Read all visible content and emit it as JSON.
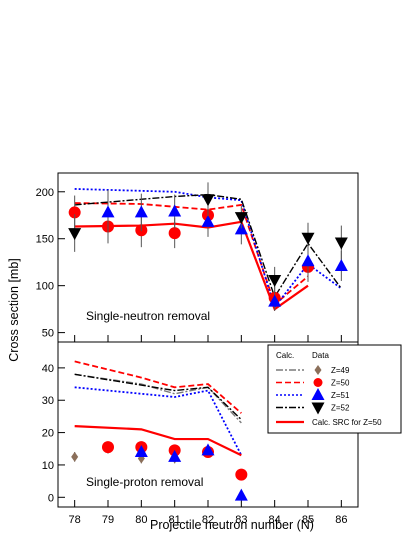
{
  "figure": {
    "xlabel": "Projectile neutron number (N)",
    "ylabel": "Cross section [mb]"
  },
  "legend": {
    "col_calc": "Calc.",
    "col_data": "Data",
    "entries": [
      "Z=49",
      "Z=50",
      "Z=51",
      "Z=52"
    ],
    "src_label": "Calc. SRC for Z=50"
  },
  "colors": {
    "Z49": "#8b6f5a",
    "Z49_calc": "#7a7a7a",
    "Z50": "#ff0000",
    "Z51": "#0000ff",
    "Z52": "#000000",
    "SRC": "#ff0000"
  },
  "chart_data": [
    {
      "type": "line",
      "annotation": "Single-neutron removal",
      "x_ticks": [
        78,
        79,
        80,
        81,
        82,
        83,
        84,
        85,
        86
      ],
      "ylim": [
        40,
        220
      ],
      "y_ticks": [
        50,
        100,
        150,
        200
      ],
      "xlim": [
        77.5,
        86.5
      ],
      "calc": [
        {
          "name": "Z=50",
          "style": "dashed",
          "x": [
            78,
            80,
            81,
            82,
            83,
            84,
            85
          ],
          "y": [
            188,
            187,
            184,
            181,
            186,
            80,
            110
          ]
        },
        {
          "name": "Z=51",
          "style": "dotted",
          "x": [
            78,
            81,
            82,
            83,
            84,
            85,
            86
          ],
          "y": [
            203,
            200,
            194,
            191,
            77,
            123,
            97
          ]
        },
        {
          "name": "Z=52",
          "style": "dashdot",
          "x": [
            78,
            81,
            82,
            83,
            84,
            85,
            86
          ],
          "y": [
            186,
            195,
            197,
            192,
            88,
            145,
            97
          ]
        },
        {
          "name": "Calc. SRC for Z=50",
          "style": "solid",
          "x": [
            78,
            80,
            81,
            82,
            83,
            84,
            85
          ],
          "y": [
            163,
            164,
            166,
            162,
            168,
            75,
            100
          ]
        }
      ],
      "data": [
        {
          "name": "Z=50",
          "marker": "circle",
          "x": [
            78,
            79,
            80,
            81,
            82,
            84,
            85
          ],
          "y": [
            178,
            163,
            159,
            156,
            175,
            87,
            120
          ],
          "err": [
            18,
            18,
            18,
            16,
            18,
            12,
            16
          ]
        },
        {
          "name": "Z=51",
          "marker": "triangle-up",
          "x": [
            79,
            80,
            81,
            82,
            83,
            84,
            85,
            86
          ],
          "y": [
            178,
            178,
            179,
            168,
            160,
            83,
            126,
            121
          ],
          "err": [
            24,
            20,
            18,
            16,
            16,
            10,
            14,
            16
          ]
        },
        {
          "name": "Z=52",
          "marker": "triangle-down",
          "x": [
            78,
            82,
            83,
            84,
            85,
            86
          ],
          "y": [
            156,
            192,
            173,
            106,
            151,
            146
          ],
          "err": [
            20,
            18,
            12,
            14,
            16,
            18
          ]
        }
      ]
    },
    {
      "type": "line",
      "annotation": "Single-proton removal",
      "x_ticks": [
        78,
        79,
        80,
        81,
        82,
        83,
        84,
        85,
        86
      ],
      "ylim": [
        -3,
        48
      ],
      "y_ticks": [
        0,
        10,
        20,
        30,
        40
      ],
      "xlim": [
        77.5,
        86.5
      ],
      "calc": [
        {
          "name": "Z=49",
          "style": "dashdot",
          "x": [
            78,
            80,
            81,
            82,
            83
          ],
          "y": [
            38,
            35,
            32,
            34,
            23
          ]
        },
        {
          "name": "Z=50",
          "style": "dashed",
          "x": [
            78,
            80,
            81,
            82,
            83
          ],
          "y": [
            42,
            37,
            34,
            35,
            26
          ]
        },
        {
          "name": "Z=51",
          "style": "dotted",
          "x": [
            78,
            80,
            81,
            82,
            83
          ],
          "y": [
            34,
            32,
            31,
            33,
            13
          ]
        },
        {
          "name": "Z=52",
          "style": "dashdot-black",
          "x": [
            78,
            81,
            82,
            83
          ],
          "y": [
            38,
            33,
            34,
            24
          ]
        },
        {
          "name": "Calc. SRC for Z=50",
          "style": "solid",
          "x": [
            78,
            80,
            81,
            82,
            83
          ],
          "y": [
            22,
            21,
            18,
            18,
            13
          ]
        }
      ],
      "data": [
        {
          "name": "Z=49",
          "marker": "diamond",
          "x": [
            78,
            79,
            80,
            81
          ],
          "y": [
            12.5,
            15,
            12,
            12
          ],
          "err": [
            1.5,
            1.5,
            1.5,
            1.5
          ]
        },
        {
          "name": "Z=50",
          "marker": "circle",
          "x": [
            79,
            80,
            81,
            82,
            83
          ],
          "y": [
            15.5,
            15.5,
            14.5,
            14,
            7
          ]
        },
        {
          "name": "Z=51",
          "marker": "triangle-up",
          "x": [
            80,
            81,
            82,
            83
          ],
          "y": [
            14,
            12.5,
            14.5,
            0.5
          ],
          "err": [
            1.5,
            1.5,
            1.5,
            0
          ]
        }
      ]
    }
  ]
}
